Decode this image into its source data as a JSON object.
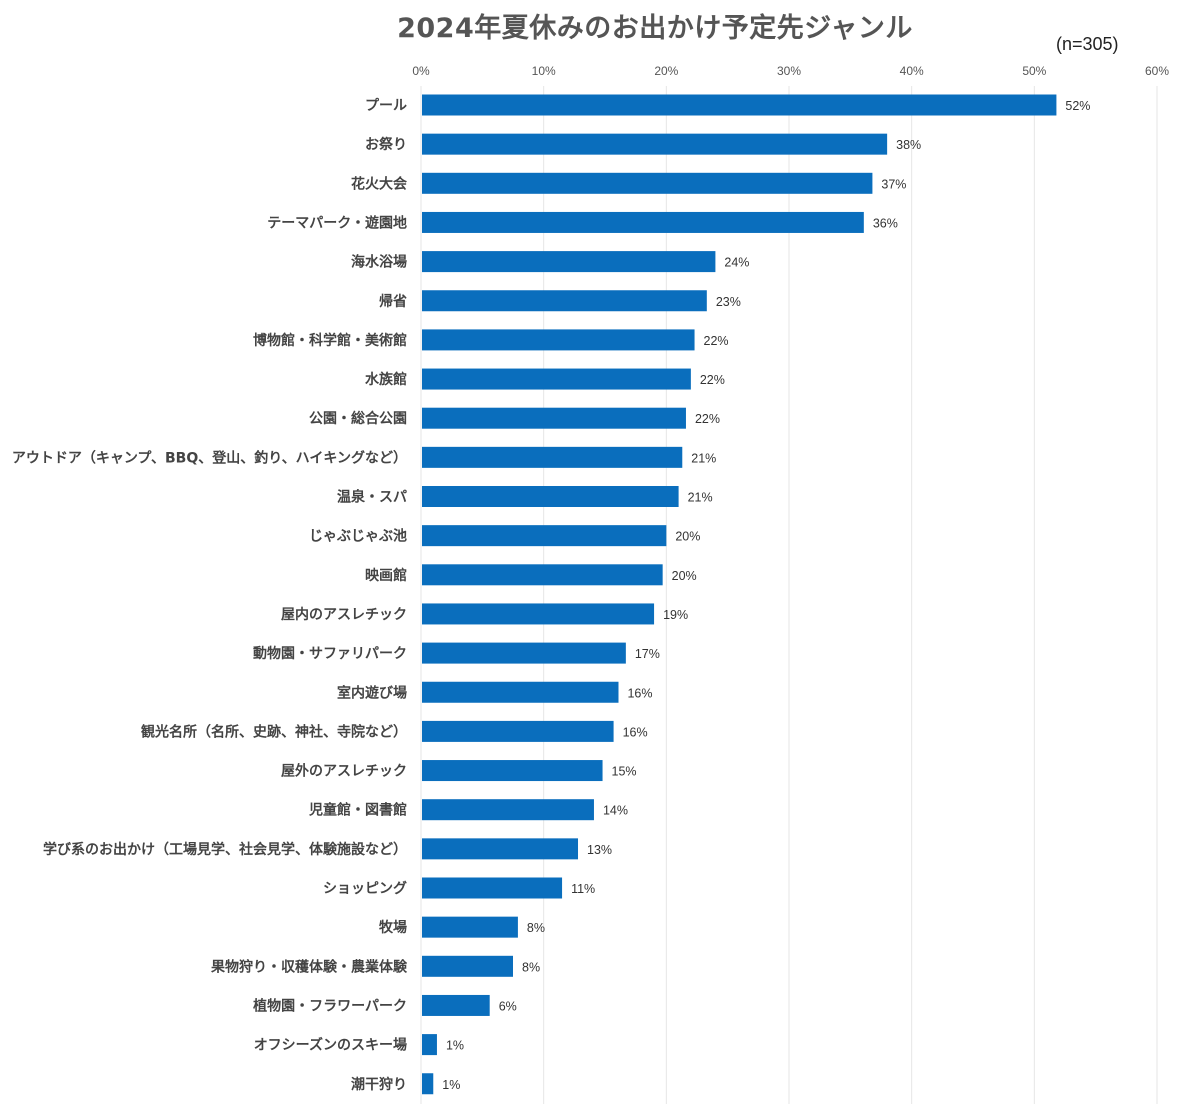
{
  "chart_data": {
    "type": "bar",
    "orientation": "horizontal",
    "title": "2024年夏休みのお出かけ予定先ジャンル",
    "annotation": "(n=305)",
    "xlim": [
      0,
      60
    ],
    "x_ticks": [
      0,
      10,
      20,
      30,
      40,
      50,
      60
    ],
    "x_tick_labels": [
      "0%",
      "10%",
      "20%",
      "30%",
      "40%",
      "50%",
      "60%"
    ],
    "grid": true,
    "bar_color": "#0a6ebd",
    "categories": [
      "プール",
      "お祭り",
      "花火大会",
      "テーマパーク・遊園地",
      "海水浴場",
      "帰省",
      "博物館・科学館・美術館",
      "水族館",
      "公園・総合公園",
      "アウトドア（キャンプ、BBQ、登山、釣り、ハイキングなど）",
      "温泉・スパ",
      "じゃぶじゃぶ池",
      "映画館",
      "屋内のアスレチック",
      "動物園・サファリパーク",
      "室内遊び場",
      "観光名所（名所、史跡、神社、寺院など）",
      "屋外のアスレチック",
      "児童館・図書館",
      "学び系のお出かけ（工場見学、社会見学、体験施設など）",
      "ショッピング",
      "牧場",
      "果物狩り・収穫体験・農業体験",
      "植物園・フラワーパーク",
      "オフシーズンのスキー場",
      "潮干狩り"
    ],
    "values": [
      51.8,
      38.0,
      36.8,
      36.1,
      24.0,
      23.3,
      22.3,
      22.0,
      21.6,
      21.3,
      21.0,
      20.0,
      19.7,
      19.0,
      16.7,
      16.1,
      15.7,
      14.8,
      14.1,
      12.8,
      11.5,
      7.9,
      7.5,
      5.6,
      1.3,
      1.0
    ],
    "value_labels": [
      "52%",
      "38%",
      "37%",
      "36%",
      "24%",
      "23%",
      "22%",
      "22%",
      "22%",
      "21%",
      "21%",
      "20%",
      "20%",
      "19%",
      "17%",
      "16%",
      "16%",
      "15%",
      "14%",
      "13%",
      "11%",
      "8%",
      "8%",
      "6%",
      "1%",
      "1%"
    ]
  }
}
